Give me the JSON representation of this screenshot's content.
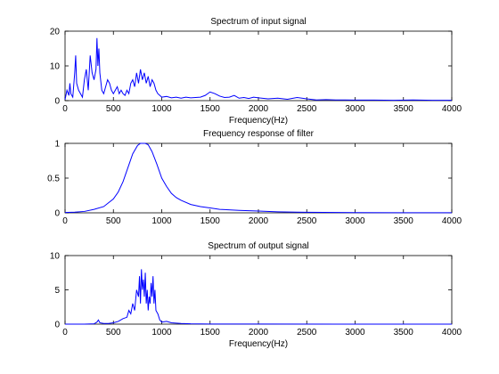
{
  "chart_data": [
    {
      "type": "line",
      "title": "Spectrum of input signal",
      "xlabel": "Frequency(Hz)",
      "ylabel": "",
      "xlim": [
        0,
        4000
      ],
      "ylim": [
        0,
        20
      ],
      "xticks": [
        0,
        500,
        1000,
        1500,
        2000,
        2500,
        3000,
        3500,
        4000
      ],
      "yticks": [
        0,
        10,
        20
      ],
      "grid": false,
      "line_color": "#0000ff",
      "series": [
        {
          "x": [
            0,
            20,
            40,
            50,
            60,
            80,
            100,
            110,
            120,
            140,
            160,
            180,
            200,
            220,
            240,
            260,
            280,
            300,
            320,
            330,
            340,
            350,
            360,
            380,
            400,
            420,
            440,
            460,
            480,
            500,
            520,
            540,
            560,
            580,
            600,
            620,
            640,
            660,
            680,
            700,
            720,
            740,
            760,
            780,
            800,
            820,
            840,
            860,
            880,
            900,
            920,
            940,
            960,
            980,
            1000,
            1050,
            1100,
            1150,
            1200,
            1250,
            1300,
            1350,
            1400,
            1450,
            1500,
            1550,
            1600,
            1650,
            1700,
            1750,
            1800,
            1850,
            1900,
            1950,
            2000,
            2100,
            2200,
            2300,
            2400,
            2500,
            2600,
            2700,
            2800,
            2900,
            3000,
            3200,
            3400,
            3600,
            3800,
            4000
          ],
          "y": [
            0.3,
            3,
            1.5,
            5,
            2,
            1,
            8,
            13,
            5,
            3,
            2,
            1,
            6,
            9,
            3,
            13,
            8,
            6,
            9,
            18,
            10,
            15,
            8,
            3,
            2,
            4,
            6,
            5,
            3,
            2,
            3,
            4,
            2,
            3,
            2,
            1.5,
            3,
            2,
            5,
            6,
            4,
            8,
            5,
            9,
            6,
            8,
            5,
            7,
            4,
            6,
            5,
            3,
            2,
            1.5,
            1,
            1.2,
            0.8,
            1,
            0.7,
            1,
            0.8,
            0.9,
            1,
            1.5,
            2.5,
            2,
            1.3,
            0.9,
            1,
            1.5,
            0.7,
            0.9,
            0.6,
            1,
            0.8,
            0.5,
            0.7,
            0.4,
            0.9,
            0.5,
            0.2,
            0.3,
            0.2,
            0.2,
            0.15,
            0.15,
            0.1,
            0.2,
            0.1,
            0.1
          ]
        }
      ]
    },
    {
      "type": "line",
      "title": "Frequency response of filter",
      "xlabel": "",
      "ylabel": "",
      "xlim": [
        0,
        4000
      ],
      "ylim": [
        0,
        1
      ],
      "xticks": [
        0,
        500,
        1000,
        1500,
        2000,
        2500,
        3000,
        3500,
        4000
      ],
      "yticks": [
        0,
        0.5,
        1
      ],
      "grid": false,
      "line_color": "#0000ff",
      "series": [
        {
          "x": [
            0,
            100,
            200,
            300,
            400,
            500,
            550,
            600,
            650,
            700,
            750,
            780,
            800,
            830,
            860,
            900,
            950,
            1000,
            1050,
            1100,
            1150,
            1200,
            1300,
            1400,
            1500,
            1600,
            1800,
            2000,
            2200,
            2400,
            2500,
            3000,
            3500,
            4000
          ],
          "y": [
            0.005,
            0.01,
            0.02,
            0.05,
            0.09,
            0.2,
            0.3,
            0.45,
            0.65,
            0.85,
            0.97,
            1.0,
            1.0,
            1.0,
            0.98,
            0.88,
            0.7,
            0.5,
            0.38,
            0.28,
            0.22,
            0.18,
            0.12,
            0.09,
            0.07,
            0.05,
            0.035,
            0.025,
            0.015,
            0.01,
            0.008,
            0.004,
            0.002,
            0.001
          ]
        }
      ]
    },
    {
      "type": "line",
      "title": "Spectrum of output signal",
      "xlabel": "Frequency(Hz)",
      "ylabel": "",
      "xlim": [
        0,
        4000
      ],
      "ylim": [
        0,
        10
      ],
      "xticks": [
        0,
        500,
        1000,
        1500,
        2000,
        2500,
        3000,
        3500,
        4000
      ],
      "yticks": [
        0,
        5,
        10
      ],
      "grid": false,
      "line_color": "#0000ff",
      "series": [
        {
          "x": [
            0,
            200,
            300,
            330,
            345,
            360,
            400,
            450,
            500,
            550,
            600,
            640,
            660,
            680,
            700,
            720,
            740,
            760,
            770,
            780,
            790,
            800,
            810,
            820,
            830,
            840,
            850,
            860,
            870,
            880,
            890,
            900,
            910,
            920,
            930,
            940,
            960,
            980,
            1000,
            1050,
            1100,
            1150,
            1200,
            1300,
            1400,
            1500,
            2000,
            3000,
            4000
          ],
          "y": [
            0,
            0,
            0.05,
            0.3,
            0.6,
            0.2,
            0.1,
            0.1,
            0.2,
            0.4,
            0.8,
            1,
            2,
            1.5,
            3,
            2,
            5,
            4,
            7,
            3,
            8,
            5,
            6.5,
            4,
            7.5,
            3,
            5,
            2,
            4,
            3,
            6,
            4,
            7,
            3,
            5,
            2,
            1.5,
            0.6,
            0.3,
            0.4,
            0.2,
            0.15,
            0.1,
            0.05,
            0.03,
            0.02,
            0.01,
            0,
            0
          ]
        }
      ]
    }
  ]
}
